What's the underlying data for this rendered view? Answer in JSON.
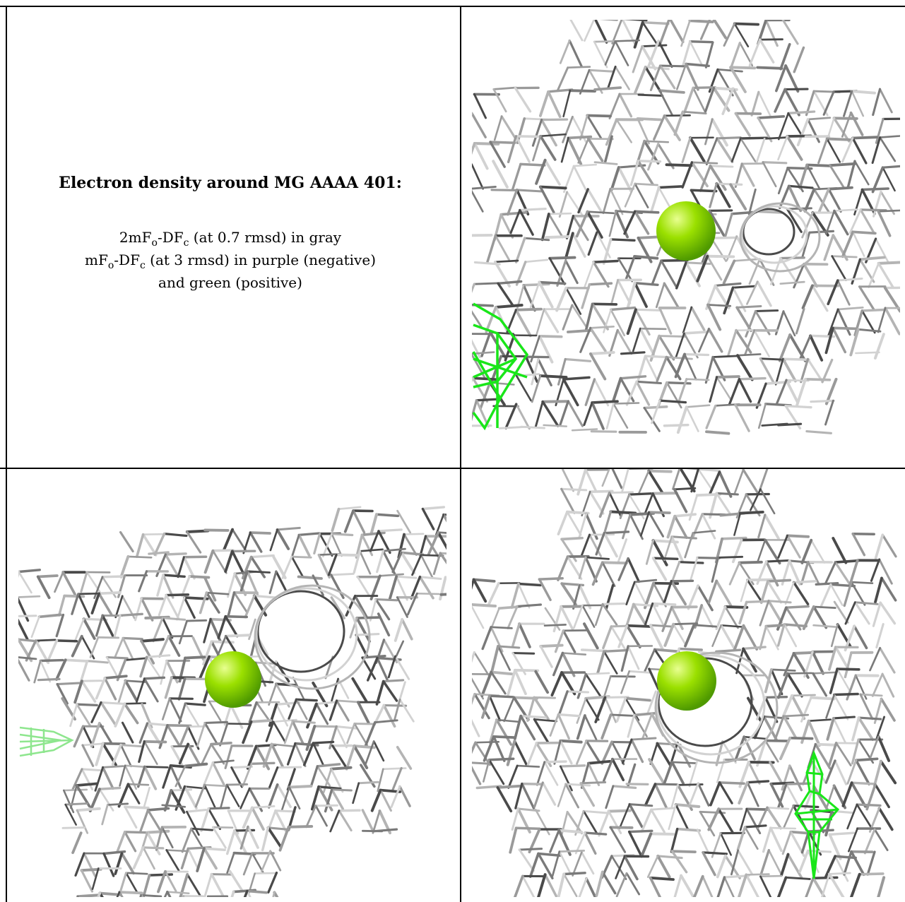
{
  "caption": {
    "title": "Electron density around MG AAAA 401:",
    "line1_parts": [
      "2mF",
      "o",
      "-DF",
      "c",
      " (at 0.7 rmsd) in gray"
    ],
    "line2_parts": [
      "mF",
      "o",
      "-DF",
      "c",
      " (at 3 rmsd) in purple (negative)"
    ],
    "line3": "and green (positive)"
  },
  "colors": {
    "mesh_gray": "#9a9a9a",
    "mesh_dark": "#4a4a4a",
    "mesh_light": "#d2d2d2",
    "difference_positive": "#19e619",
    "difference_positive_faint": "#8ee68e",
    "magnesium_atom": "#7fd100",
    "border": "#000000"
  },
  "panels": [
    {
      "name": "top-right-view",
      "icon": "electron-density-mesh"
    },
    {
      "name": "bottom-left-view",
      "icon": "electron-density-mesh"
    },
    {
      "name": "bottom-right-view",
      "icon": "electron-density-mesh"
    }
  ]
}
